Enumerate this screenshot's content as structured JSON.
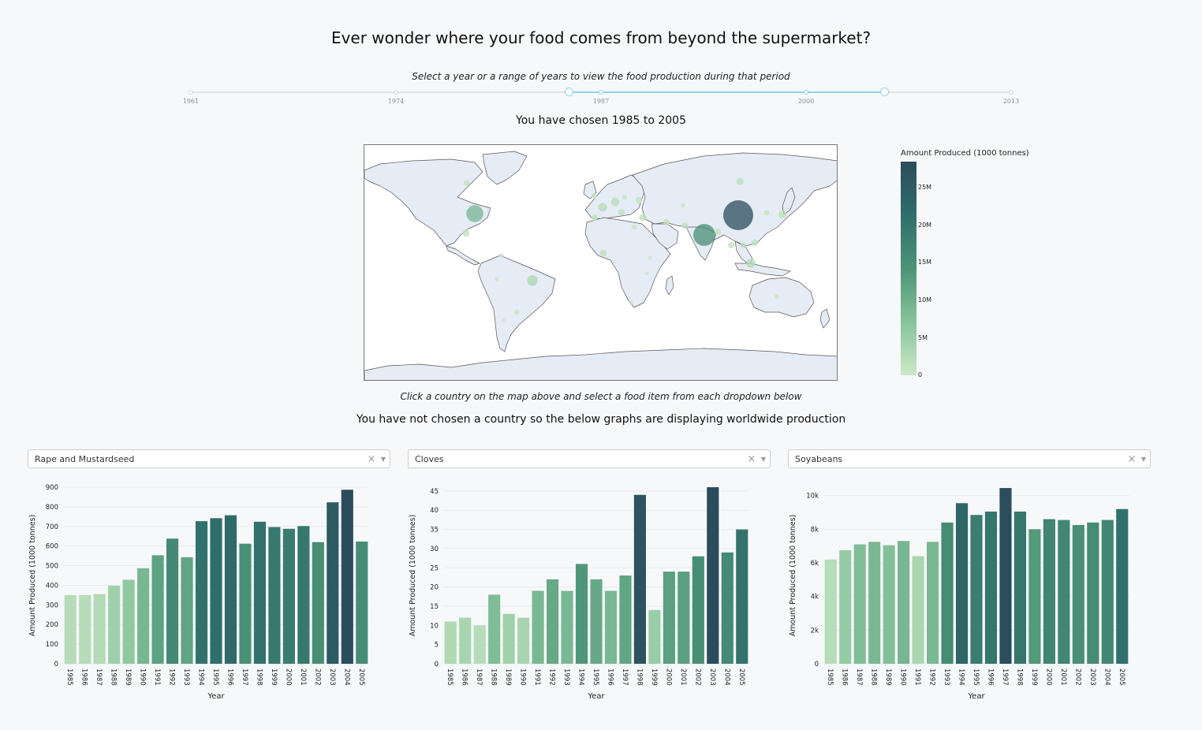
{
  "page": {
    "title": "Ever wonder where your food comes from beyond the supermarket?",
    "slider_instruction": "Select a year or a range of years to view the food production during that period",
    "chosen_text": "You have chosen 1985 to 2005",
    "map_instruction": "Click a country on the map above and select a food item from each dropdown below",
    "country_notice": "You have not chosen a country so the below graphs are displaying worldwide production"
  },
  "slider": {
    "min": 1961,
    "max": 2013,
    "marks": [
      "1961",
      "1974",
      "1987",
      "2000",
      "2013"
    ],
    "value": [
      1985,
      2005
    ]
  },
  "colorbar": {
    "title": "Amount Produced (1000 tonnes)",
    "ticks": [
      "25M",
      "20M",
      "15M",
      "10M",
      "5M",
      "0"
    ],
    "colors": [
      "#cde8c6",
      "#86c39a",
      "#4d9477",
      "#2f6e6b",
      "#2b4c5c"
    ]
  },
  "map_bubbles": [
    {
      "country": "China",
      "value": 28000000
    },
    {
      "country": "India",
      "value": 15000000
    },
    {
      "country": "United States",
      "value": 9000000
    },
    {
      "country": "Brazil",
      "value": 3500000
    },
    {
      "country": "Canada",
      "value": 1200000
    },
    {
      "country": "Russia",
      "value": 1800000
    },
    {
      "country": "Japan",
      "value": 2000000
    },
    {
      "country": "Indonesia",
      "value": 2600000
    },
    {
      "country": "Australia",
      "value": 700000
    },
    {
      "country": "Argentina",
      "value": 900000
    },
    {
      "country": "Mexico",
      "value": 1600000
    },
    {
      "country": "Germany",
      "value": 2200000
    },
    {
      "country": "France",
      "value": 2400000
    },
    {
      "country": "Italy",
      "value": 1500000
    },
    {
      "country": "Spain",
      "value": 1200000
    },
    {
      "country": "United Kingdom",
      "value": 1000000
    },
    {
      "country": "Turkey",
      "value": 1700000
    },
    {
      "country": "Iran",
      "value": 1300000
    },
    {
      "country": "Pakistan",
      "value": 1500000
    },
    {
      "country": "Thailand",
      "value": 1300000
    },
    {
      "country": "Vietnam",
      "value": 1100000
    },
    {
      "country": "Philippines",
      "value": 1400000
    },
    {
      "country": "Nigeria",
      "value": 1500000
    },
    {
      "country": "Egypt",
      "value": 900000
    },
    {
      "country": "Ethiopia",
      "value": 600000
    },
    {
      "country": "Tanzania",
      "value": 500000
    },
    {
      "country": "South Africa",
      "value": 500000
    },
    {
      "country": "Ukraine",
      "value": 1400000
    },
    {
      "country": "Poland",
      "value": 900000
    },
    {
      "country": "Bangladesh",
      "value": 1300000
    },
    {
      "country": "Colombia",
      "value": 600000
    },
    {
      "country": "Peru",
      "value": 400000
    },
    {
      "country": "Chile",
      "value": 400000
    },
    {
      "country": "Kazakhstan",
      "value": 700000
    },
    {
      "country": "Korea",
      "value": 1000000
    }
  ],
  "dropdowns": [
    {
      "value": "Rape and Mustardseed",
      "clear": "×",
      "caret": "▼"
    },
    {
      "value": "Cloves",
      "clear": "×",
      "caret": "▼"
    },
    {
      "value": "Soyabeans",
      "clear": "×",
      "caret": "▼"
    }
  ],
  "chart_data": [
    {
      "type": "bar",
      "title": "",
      "xlabel": "Year",
      "ylabel": "Amount Produced (1000 tonnes)",
      "categories": [
        "1985",
        "1986",
        "1987",
        "1988",
        "1989",
        "1990",
        "1991",
        "1992",
        "1993",
        "1994",
        "1995",
        "1996",
        "1997",
        "1998",
        "1999",
        "2000",
        "2001",
        "2002",
        "2003",
        "2004",
        "2005"
      ],
      "values": [
        350,
        350,
        355,
        398,
        428,
        487,
        553,
        638,
        543,
        727,
        742,
        757,
        612,
        724,
        697,
        688,
        702,
        620,
        823,
        887,
        623
      ],
      "ylim": [
        0,
        900
      ],
      "yticks": [
        0,
        100,
        200,
        300,
        400,
        500,
        600,
        700,
        800,
        900
      ],
      "ytick_labels": [
        "0",
        "100",
        "200",
        "300",
        "400",
        "500",
        "600",
        "700",
        "800",
        "900"
      ],
      "grid": true
    },
    {
      "type": "bar",
      "title": "",
      "xlabel": "Year",
      "ylabel": "Amount Produced (1000 tonnes)",
      "categories": [
        "1985",
        "1986",
        "1987",
        "1988",
        "1989",
        "1990",
        "1991",
        "1992",
        "1993",
        "1994",
        "1995",
        "1996",
        "1997",
        "1998",
        "1999",
        "2000",
        "2001",
        "2002",
        "2003",
        "2004",
        "2005"
      ],
      "values": [
        11,
        12,
        10,
        18,
        13,
        12,
        19,
        22,
        19,
        26,
        22,
        19,
        23,
        44,
        14,
        24,
        24,
        28,
        46,
        29,
        35
      ],
      "ylim": [
        0,
        46
      ],
      "yticks": [
        0,
        5,
        10,
        15,
        20,
        25,
        30,
        35,
        40,
        45
      ],
      "ytick_labels": [
        "0",
        "5",
        "10",
        "15",
        "20",
        "25",
        "30",
        "35",
        "40",
        "45"
      ],
      "grid": true
    },
    {
      "type": "bar",
      "title": "",
      "xlabel": "Year",
      "ylabel": "Amount Produced (1000 tonnes)",
      "categories": [
        "1985",
        "1986",
        "1987",
        "1988",
        "1989",
        "1990",
        "1991",
        "1992",
        "1993",
        "1994",
        "1995",
        "1996",
        "1997",
        "1998",
        "1999",
        "2000",
        "2001",
        "2002",
        "2003",
        "2004",
        "2005"
      ],
      "values": [
        6200,
        6750,
        7100,
        7250,
        7050,
        7300,
        6400,
        7250,
        8400,
        9550,
        8850,
        9050,
        10450,
        9050,
        8000,
        8600,
        8550,
        8250,
        8400,
        8550,
        9200
      ],
      "ylim": [
        0,
        10500
      ],
      "yticks": [
        0,
        2000,
        4000,
        6000,
        8000,
        10000
      ],
      "ytick_labels": [
        "0",
        "2k",
        "4k",
        "6k",
        "8k",
        "10k"
      ],
      "grid": true
    }
  ]
}
